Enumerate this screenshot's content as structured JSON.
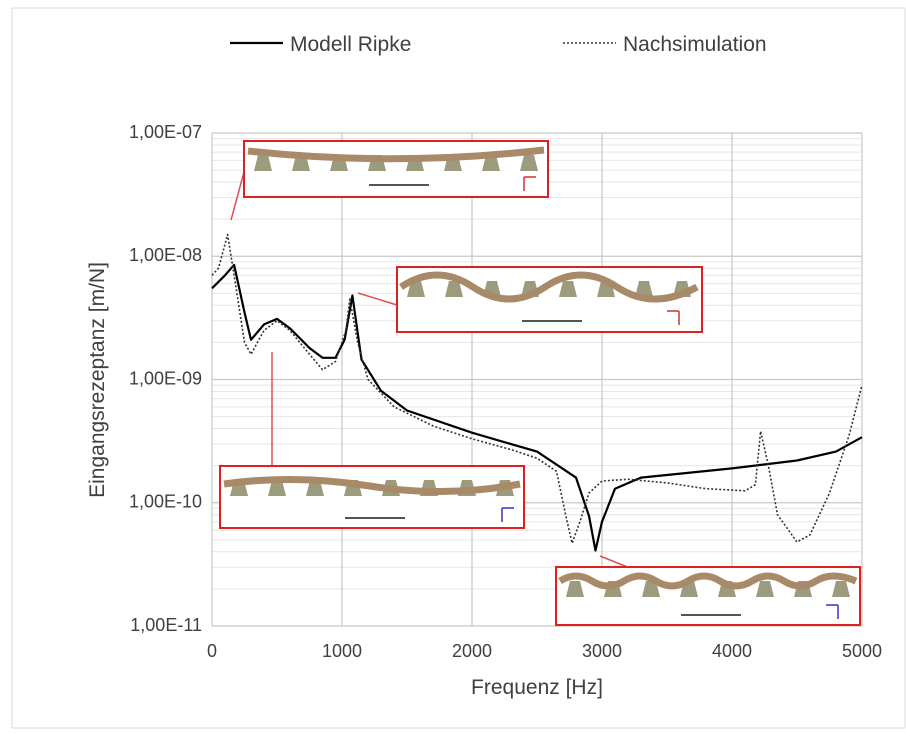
{
  "chart_data": {
    "type": "line",
    "xlabel": "Frequenz [Hz]",
    "ylabel": "Eingangsrezeptanz [m/N]",
    "xlim": [
      0,
      5000
    ],
    "xticks": [
      0,
      1000,
      2000,
      3000,
      4000,
      5000
    ],
    "ylim": [
      1e-11,
      1e-07
    ],
    "yticks": [
      {
        "value": 1e-11,
        "label": "1,00E-11"
      },
      {
        "value": 1e-10,
        "label": "1,00E-10"
      },
      {
        "value": 1e-09,
        "label": "1,00E-09"
      },
      {
        "value": 1e-08,
        "label": "1,00E-08"
      },
      {
        "value": 1e-07,
        "label": "1,00E-07"
      }
    ],
    "log_y": true,
    "grid": true,
    "minor_grid": true,
    "legend": "top",
    "series": [
      {
        "name": "Modell Ripke",
        "color": "#000000",
        "style": "solid",
        "x": [
          0,
          100,
          170,
          250,
          300,
          400,
          500,
          600,
          750,
          850,
          950,
          1020,
          1080,
          1150,
          1300,
          1500,
          2000,
          2500,
          2800,
          2900,
          2950,
          3000,
          3100,
          3300,
          4000,
          4500,
          4800,
          5000
        ],
        "values": [
          5.5e-09,
          7e-09,
          8.5e-09,
          3.5e-09,
          2.1e-09,
          2.8e-09,
          3.1e-09,
          2.6e-09,
          1.8e-09,
          1.5e-09,
          1.5e-09,
          2.1e-09,
          4.8e-09,
          1.45e-09,
          8.1e-10,
          5.6e-10,
          3.7e-10,
          2.6e-10,
          1.6e-10,
          7.8e-11,
          4.1e-11,
          7e-11,
          1.3e-10,
          1.6e-10,
          1.9e-10,
          2.2e-10,
          2.6e-10,
          3.4e-10
        ]
      },
      {
        "name": "Nachsimulation",
        "color": "#333333",
        "style": "dotted",
        "x": [
          0,
          50,
          120,
          180,
          250,
          300,
          400,
          500,
          600,
          750,
          850,
          950,
          1030,
          1060,
          1120,
          1200,
          1400,
          1700,
          2000,
          2300,
          2500,
          2650,
          2720,
          2770,
          2830,
          2900,
          3000,
          3200,
          3500,
          3800,
          4100,
          4180,
          4220,
          4280,
          4350,
          4500,
          4600,
          4750,
          4900,
          5000
        ],
        "values": [
          7e-09,
          8e-09,
          1.5e-08,
          6e-09,
          2e-09,
          1.6e-09,
          2.5e-09,
          3e-09,
          2.5e-09,
          1.6e-09,
          1.2e-09,
          1.4e-09,
          2.5e-09,
          4.5e-09,
          2e-09,
          1e-09,
          6e-10,
          4.2e-10,
          3.3e-10,
          2.7e-10,
          2.3e-10,
          1.8e-10,
          8e-11,
          4.7e-11,
          7e-11,
          1.2e-10,
          1.5e-10,
          1.55e-10,
          1.45e-10,
          1.3e-10,
          1.25e-10,
          1.4e-10,
          3.8e-10,
          2e-10,
          8e-11,
          4.8e-11,
          5.5e-11,
          1.2e-10,
          3.5e-10,
          9e-10
        ]
      }
    ]
  }
}
